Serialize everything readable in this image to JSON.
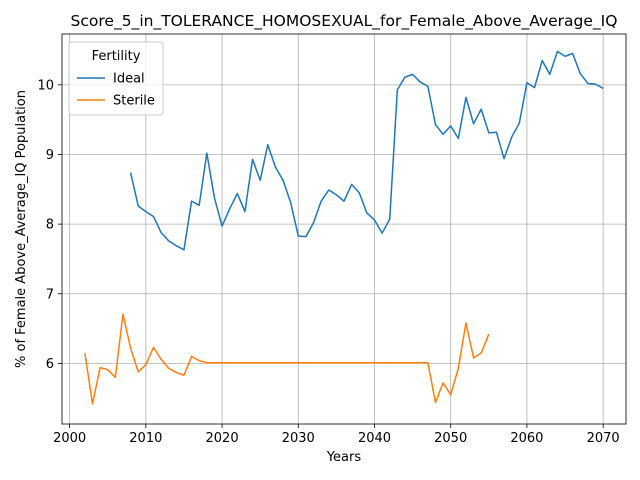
{
  "chart_data": {
    "type": "line",
    "title": "Score_5_in_TOLERANCE_HOMOSEXUAL_for_Female_Above_Average_IQ",
    "xlabel": "Years",
    "ylabel": "% of Female Above_Average_IQ Population",
    "xlim": [
      1999,
      2073
    ],
    "ylim": [
      5.13,
      10.73
    ],
    "xticks": [
      2000,
      2010,
      2020,
      2030,
      2040,
      2050,
      2060,
      2070
    ],
    "yticks": [
      6,
      7,
      8,
      9,
      10
    ],
    "grid": true,
    "legend": {
      "title": "Fertility",
      "placement": "top-left"
    },
    "series": [
      {
        "name": "Ideal",
        "color": "#1f77b4",
        "points": [
          [
            2008,
            8.74
          ],
          [
            2009,
            8.26
          ],
          [
            2010,
            8.18
          ],
          [
            2011,
            8.11
          ],
          [
            2012,
            7.88
          ],
          [
            2013,
            7.76
          ],
          [
            2014,
            7.69
          ],
          [
            2015,
            7.63
          ],
          [
            2016,
            8.33
          ],
          [
            2017,
            8.27
          ],
          [
            2018,
            9.02
          ],
          [
            2019,
            8.38
          ],
          [
            2020,
            7.97
          ],
          [
            2021,
            8.22
          ],
          [
            2022,
            8.44
          ],
          [
            2023,
            8.18
          ],
          [
            2024,
            8.93
          ],
          [
            2025,
            8.63
          ],
          [
            2026,
            9.14
          ],
          [
            2027,
            8.82
          ],
          [
            2028,
            8.63
          ],
          [
            2029,
            8.31
          ],
          [
            2030,
            7.83
          ],
          [
            2031,
            7.82
          ],
          [
            2032,
            8.02
          ],
          [
            2033,
            8.33
          ],
          [
            2034,
            8.49
          ],
          [
            2035,
            8.42
          ],
          [
            2036,
            8.33
          ],
          [
            2037,
            8.57
          ],
          [
            2038,
            8.45
          ],
          [
            2039,
            8.16
          ],
          [
            2040,
            8.06
          ],
          [
            2041,
            7.87
          ],
          [
            2042,
            8.07
          ],
          [
            2043,
            9.93
          ],
          [
            2044,
            10.11
          ],
          [
            2045,
            10.15
          ],
          [
            2046,
            10.04
          ],
          [
            2047,
            9.98
          ],
          [
            2048,
            9.43
          ],
          [
            2049,
            9.29
          ],
          [
            2050,
            9.41
          ],
          [
            2051,
            9.23
          ],
          [
            2052,
            9.82
          ],
          [
            2053,
            9.44
          ],
          [
            2054,
            9.65
          ],
          [
            2055,
            9.31
          ],
          [
            2056,
            9.32
          ],
          [
            2057,
            8.94
          ],
          [
            2058,
            9.25
          ],
          [
            2059,
            9.45
          ],
          [
            2060,
            10.03
          ],
          [
            2061,
            9.96
          ],
          [
            2062,
            10.35
          ],
          [
            2063,
            10.15
          ],
          [
            2064,
            10.48
          ],
          [
            2065,
            10.41
          ],
          [
            2066,
            10.45
          ],
          [
            2067,
            10.16
          ],
          [
            2068,
            10.02
          ],
          [
            2069,
            10.01
          ],
          [
            2070,
            9.95
          ]
        ]
      },
      {
        "name": "Sterile",
        "color": "#ff7f0e",
        "points": [
          [
            2002,
            6.15
          ],
          [
            2003,
            5.42
          ],
          [
            2004,
            5.94
          ],
          [
            2005,
            5.91
          ],
          [
            2006,
            5.8
          ],
          [
            2007,
            6.71
          ],
          [
            2008,
            6.22
          ],
          [
            2009,
            5.88
          ],
          [
            2010,
            5.98
          ],
          [
            2011,
            6.23
          ],
          [
            2012,
            6.06
          ],
          [
            2013,
            5.93
          ],
          [
            2014,
            5.87
          ],
          [
            2015,
            5.83
          ],
          [
            2016,
            6.1
          ],
          [
            2017,
            6.04
          ],
          [
            2018,
            6.01
          ],
          [
            2019,
            6.01
          ],
          [
            2020,
            6.01
          ],
          [
            2021,
            6.01
          ],
          [
            2022,
            6.01
          ],
          [
            2023,
            6.01
          ],
          [
            2024,
            6.01
          ],
          [
            2025,
            6.01
          ],
          [
            2026,
            6.01
          ],
          [
            2027,
            6.01
          ],
          [
            2028,
            6.01
          ],
          [
            2029,
            6.01
          ],
          [
            2030,
            6.01
          ],
          [
            2031,
            6.01
          ],
          [
            2032,
            6.01
          ],
          [
            2033,
            6.01
          ],
          [
            2034,
            6.01
          ],
          [
            2035,
            6.01
          ],
          [
            2036,
            6.01
          ],
          [
            2037,
            6.01
          ],
          [
            2038,
            6.01
          ],
          [
            2039,
            6.01
          ],
          [
            2040,
            6.01
          ],
          [
            2041,
            6.01
          ],
          [
            2042,
            6.01
          ],
          [
            2043,
            6.01
          ],
          [
            2044,
            6.01
          ],
          [
            2045,
            6.01
          ],
          [
            2046,
            6.01
          ],
          [
            2047,
            6.01
          ],
          [
            2048,
            5.44
          ],
          [
            2049,
            5.72
          ],
          [
            2050,
            5.55
          ],
          [
            2051,
            5.93
          ],
          [
            2052,
            6.58
          ],
          [
            2053,
            6.08
          ],
          [
            2054,
            6.15
          ],
          [
            2055,
            6.42
          ]
        ]
      }
    ]
  }
}
